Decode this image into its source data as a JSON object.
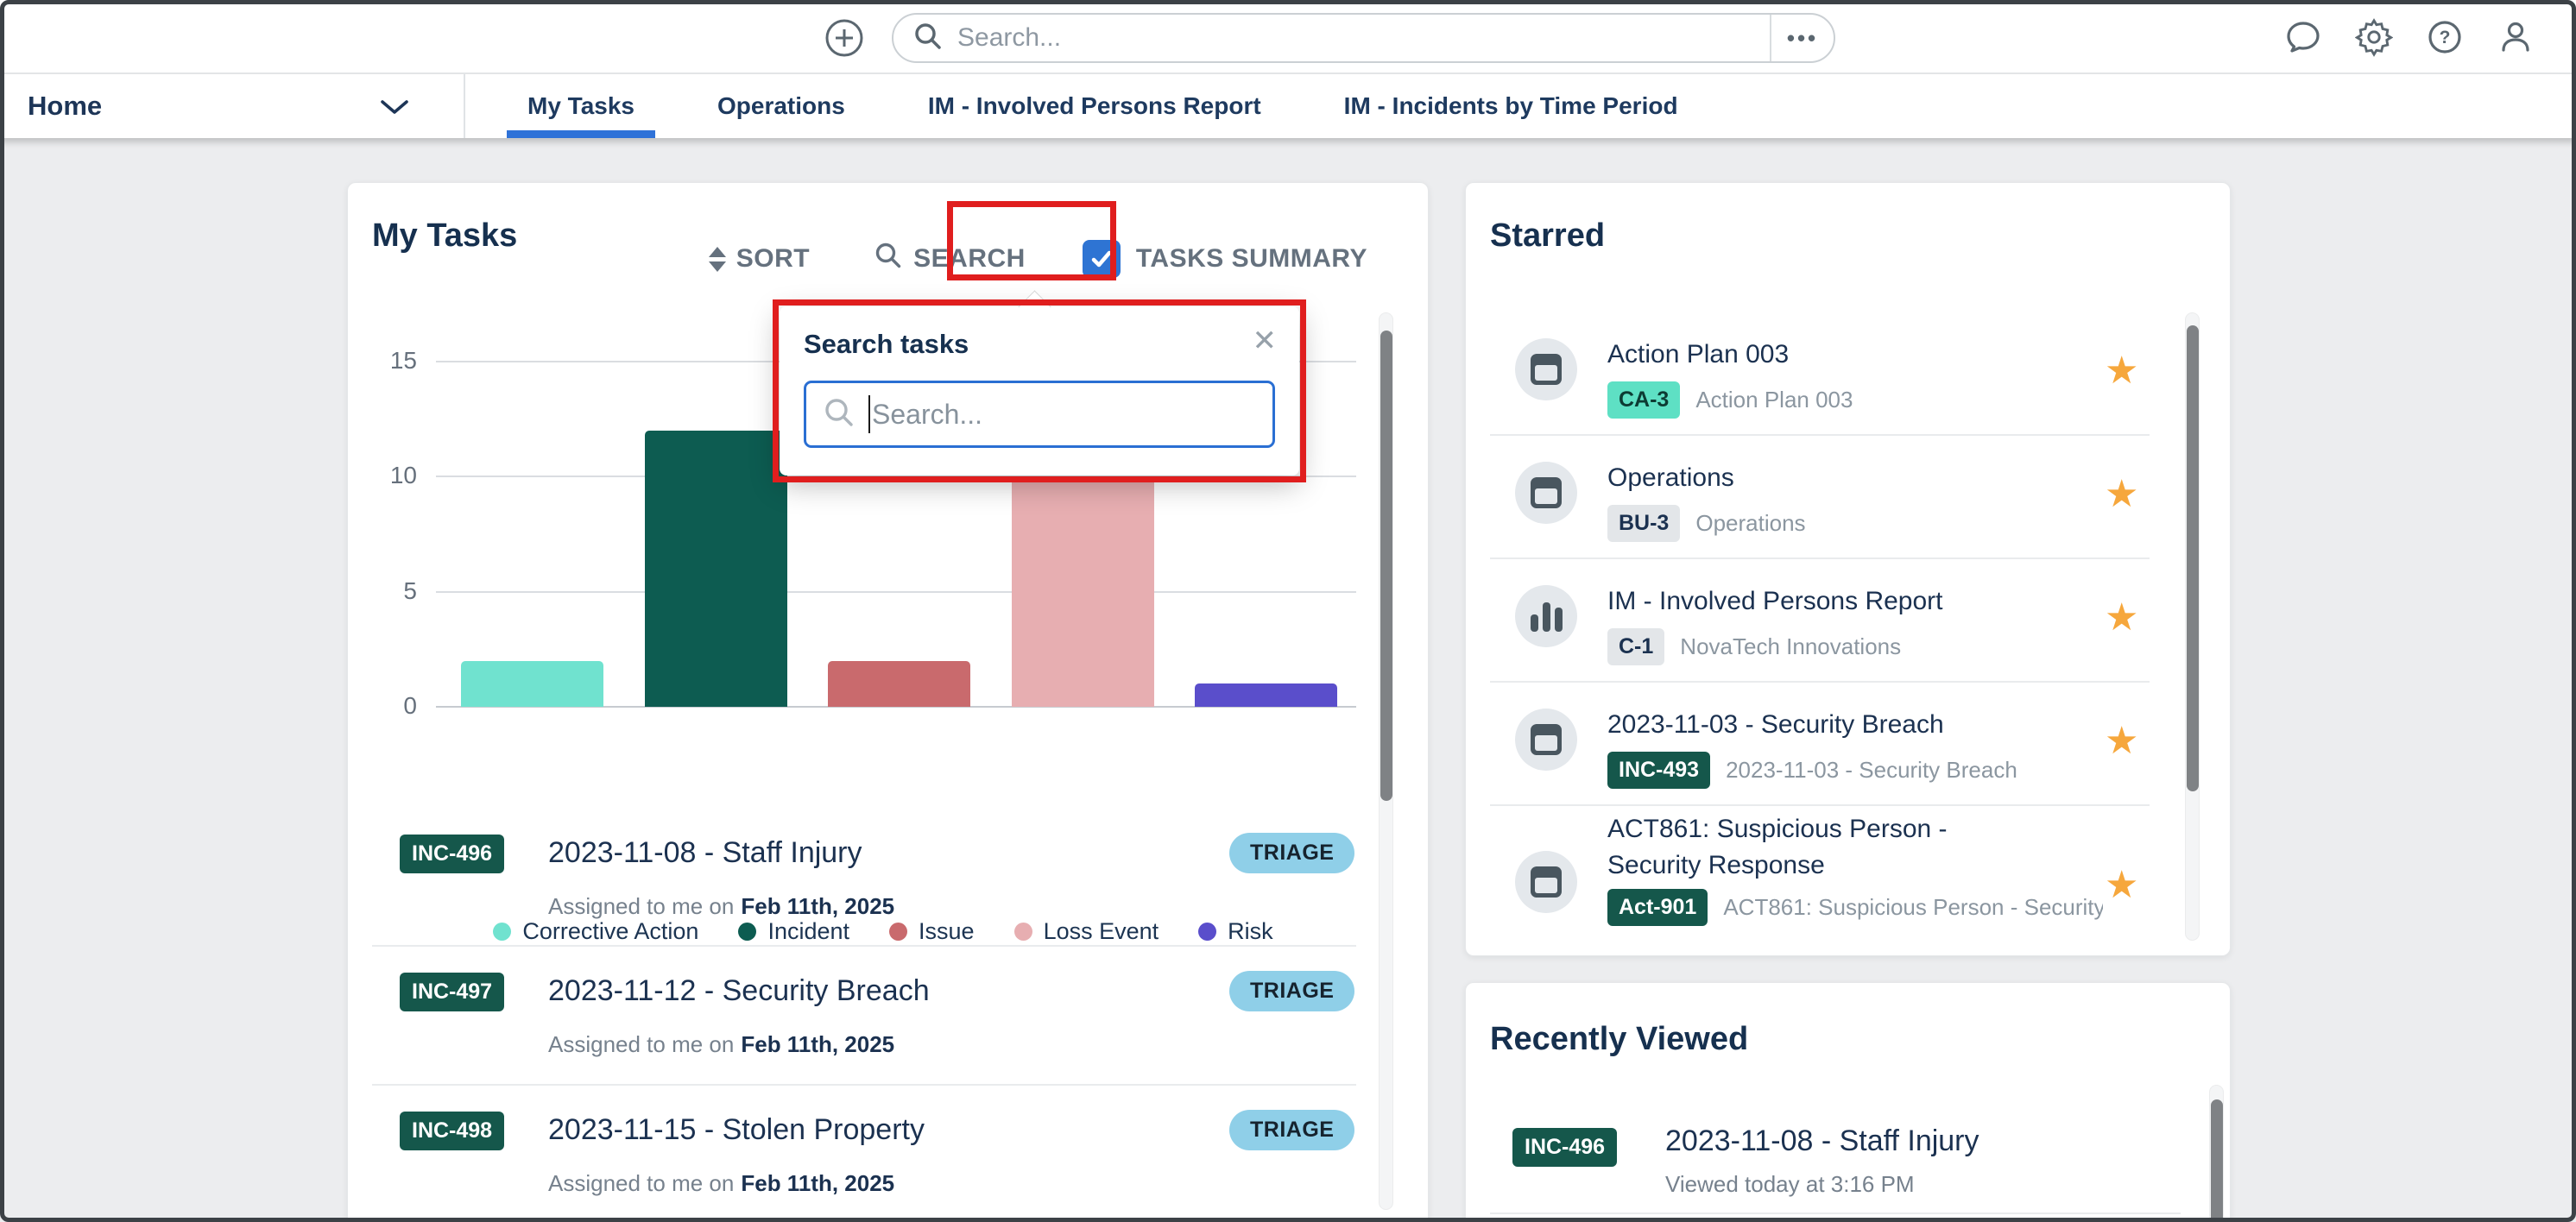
{
  "topbar": {
    "search_placeholder": "Search...",
    "more_label": "•••"
  },
  "nav": {
    "home_label": "Home",
    "tabs": [
      {
        "label": "My Tasks",
        "active": true
      },
      {
        "label": "Operations",
        "active": false
      },
      {
        "label": "IM - Involved Persons Report",
        "active": false
      },
      {
        "label": "IM - Incidents by Time Period",
        "active": false
      }
    ]
  },
  "my_tasks": {
    "title": "My Tasks",
    "toolbar": {
      "sort_label": "SORT",
      "search_label": "SEARCH",
      "tasks_summary_label": "TASKS SUMMARY"
    },
    "search_popup": {
      "title": "Search tasks",
      "close_glyph": "✕",
      "placeholder": "Search..."
    },
    "tasks": [
      {
        "id": "INC-496",
        "title": "2023-11-08 - Staff Injury",
        "status": "TRIAGE",
        "assigned_prefix": "Assigned to me on",
        "assigned_date": "Feb 11th, 2025"
      },
      {
        "id": "INC-497",
        "title": "2023-11-12 - Security Breach",
        "status": "TRIAGE",
        "assigned_prefix": "Assigned to me on",
        "assigned_date": "Feb 11th, 2025"
      },
      {
        "id": "INC-498",
        "title": "2023-11-15 - Stolen Property",
        "status": "TRIAGE",
        "assigned_prefix": "Assigned to me on",
        "assigned_date": "Feb 11th, 2025"
      }
    ]
  },
  "starred": {
    "title": "Starred",
    "star_glyph": "★",
    "items": [
      {
        "title": "Action Plan 003",
        "badge": "CA-3",
        "badge_variant": "mint",
        "subtitle": "Action Plan 003",
        "icon": "window"
      },
      {
        "title": "Operations",
        "badge": "BU-3",
        "badge_variant": "gray",
        "subtitle": "Operations",
        "icon": "window"
      },
      {
        "title": "IM - Involved Persons Report",
        "badge": "C-1",
        "badge_variant": "gray",
        "subtitle": "NovaTech Innovations",
        "icon": "chart"
      },
      {
        "title": "2023-11-03 - Security Breach",
        "badge": "INC-493",
        "badge_variant": "green",
        "subtitle": "2023-11-03 - Security Breach",
        "icon": "window"
      },
      {
        "title": "ACT861: Suspicious Person - Security Response",
        "badge": "Act-901",
        "badge_variant": "green",
        "subtitle": "ACT861: Suspicious Person - Security",
        "icon": "window"
      }
    ]
  },
  "recently_viewed": {
    "title": "Recently Viewed",
    "items": [
      {
        "id": "INC-496",
        "title": "2023-11-08 - Staff Injury",
        "subtitle": "Viewed today at 3:16 PM"
      }
    ]
  },
  "chart_data": {
    "type": "bar",
    "categories": [
      "Corrective Action",
      "Incident",
      "Issue",
      "Loss Event",
      "Risk"
    ],
    "values": [
      2,
      12,
      2,
      10,
      1
    ],
    "colors": [
      "#70E2CF",
      "#0D5C51",
      "#C96A6D",
      "#E7AEB1",
      "#5A4ECB"
    ],
    "title": "",
    "xlabel": "",
    "ylabel": "",
    "ylim": [
      0,
      15
    ],
    "yticks": [
      0,
      5,
      10,
      15
    ],
    "grid": true,
    "legend_position": "bottom"
  },
  "colors": {
    "accent_blue": "#2F72D8",
    "annotation_red": "#E01E1E",
    "badge_green": "#15574B",
    "triage_blue": "#8FCFE8",
    "mint": "#5EE0C4",
    "star_orange": "#F6A73C",
    "navy": "#1B3150",
    "page_bg": "#ECEDEF"
  }
}
